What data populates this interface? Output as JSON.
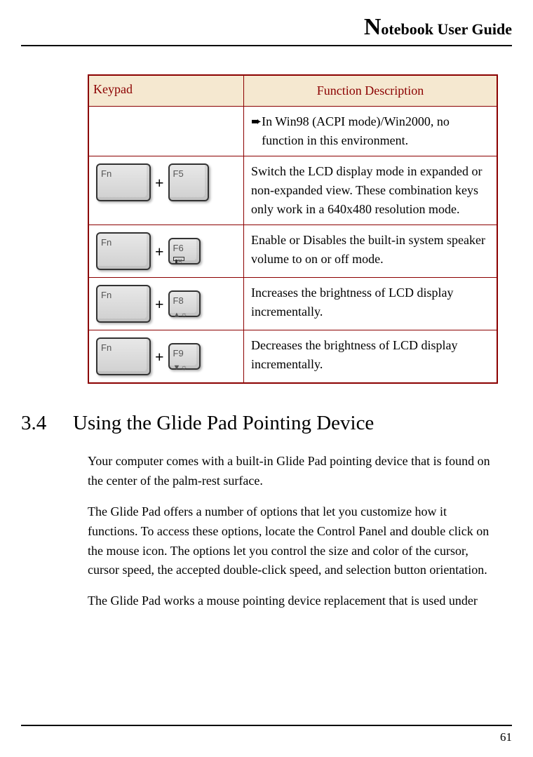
{
  "header": {
    "title_prefix": "N",
    "title_rest": "otebook User Guide"
  },
  "table": {
    "headers": {
      "keypad": "Keypad",
      "function_desc": "Function Description"
    },
    "header_bg": "#f5e8d0",
    "header_color": "#8b0000",
    "border_color": "#8b0000",
    "rows": [
      {
        "keypad": "",
        "desc": "In Win98 (ACPI mode)/Win2000, no function in this environment.",
        "bullet": "➨",
        "fn_key": "",
        "second_key": "",
        "second_icon": ""
      },
      {
        "fn_key": "Fn",
        "plus": "+",
        "second_key": "F5",
        "second_icon": "",
        "desc": "Switch the LCD display mode in expanded or non-expanded view. These combination keys only work in a 640x480 resolution mode."
      },
      {
        "fn_key": "Fn",
        "plus": "+",
        "second_key": "F6",
        "second_icon": "mute",
        "desc": "Enable or Disables the built-in system speaker volume to on or off mode."
      },
      {
        "fn_key": "Fn",
        "plus": "+",
        "second_key": "F8",
        "second_icon": "▲☼",
        "desc": "Increases the brightness of LCD display incrementally."
      },
      {
        "fn_key": "Fn",
        "plus": "+",
        "second_key": "F9",
        "second_icon": "▼☼",
        "desc": "Decreases the brightness of LCD display incrementally."
      }
    ]
  },
  "section": {
    "number": "3.4",
    "title": "Using the Glide Pad Pointing Device",
    "paras": [
      "Your computer comes with a built-in Glide Pad pointing device that is found on the center of the palm-rest surface.",
      "The Glide Pad offers a number of options that let you customize how it functions. To access these options, locate the Control Panel and double click on the mouse icon. The options let you control the size and color of the cursor, cursor speed, the accepted double-click speed, and selection button orientation.",
      "The Glide Pad works a mouse pointing device replacement that is used under"
    ]
  },
  "footer": {
    "page_number": "61"
  },
  "typography": {
    "body_font": "Georgia, serif",
    "heading_font": "Century Schoolbook, Georgia, serif",
    "body_size_pt": 18,
    "heading_size_pt": 29
  }
}
